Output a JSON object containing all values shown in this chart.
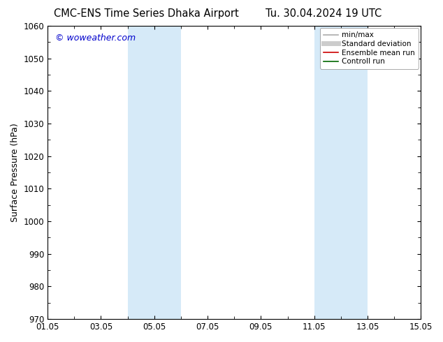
{
  "title_left": "CMC-ENS Time Series Dhaka Airport",
  "title_right": "Tu. 30.04.2024 19 UTC",
  "ylabel": "Surface Pressure (hPa)",
  "ylim": [
    970,
    1060
  ],
  "yticks": [
    970,
    980,
    990,
    1000,
    1010,
    1020,
    1030,
    1040,
    1050,
    1060
  ],
  "xlim_start": 0,
  "xlim_end": 14,
  "xtick_positions": [
    0,
    2,
    4,
    6,
    8,
    10,
    12,
    14
  ],
  "xtick_labels": [
    "01.05",
    "03.05",
    "05.05",
    "07.05",
    "09.05",
    "11.05",
    "13.05",
    "15.05"
  ],
  "shaded_bands": [
    {
      "x_start": 3.0,
      "x_end": 5.0
    },
    {
      "x_start": 10.0,
      "x_end": 12.0
    }
  ],
  "band_color": "#d6eaf8",
  "watermark_text": "© woweather.com",
  "watermark_color": "#0000cc",
  "background_color": "#ffffff",
  "legend_items": [
    {
      "label": "min/max",
      "color": "#aaaaaa",
      "lw": 1.2
    },
    {
      "label": "Standard deviation",
      "color": "#cccccc",
      "lw": 5
    },
    {
      "label": "Ensemble mean run",
      "color": "#cc0000",
      "lw": 1.2
    },
    {
      "label": "Controll run",
      "color": "#006600",
      "lw": 1.2
    }
  ],
  "title_fontsize": 10.5,
  "axis_label_fontsize": 9,
  "tick_fontsize": 8.5,
  "legend_fontsize": 7.5,
  "watermark_fontsize": 9
}
